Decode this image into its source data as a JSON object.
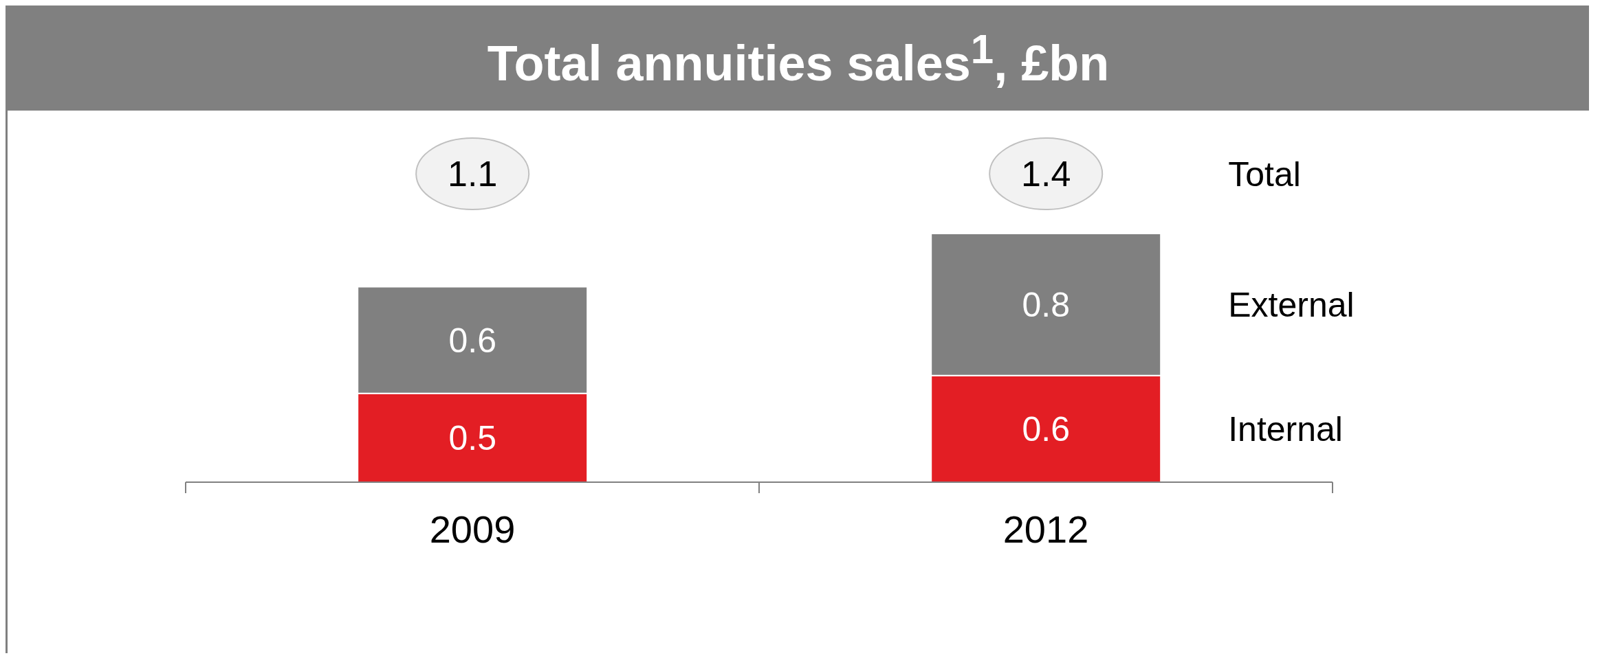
{
  "chart_data": {
    "type": "bar",
    "title": "Total annuities sales$^{1}$, £bn",
    "categories": [
      "2009",
      "2012"
    ],
    "stacked": true,
    "data_labels": true,
    "series": [
      {
        "name": "Internal",
        "color": "#e31e24",
        "values": [
          0.5,
          0.6
        ]
      },
      {
        "name": "External",
        "color": "#808080",
        "values": [
          0.6,
          0.8
        ]
      }
    ],
    "totals": [
      "1.1",
      "1.4"
    ],
    "annotations": [
      "Total"
    ]
  }
}
